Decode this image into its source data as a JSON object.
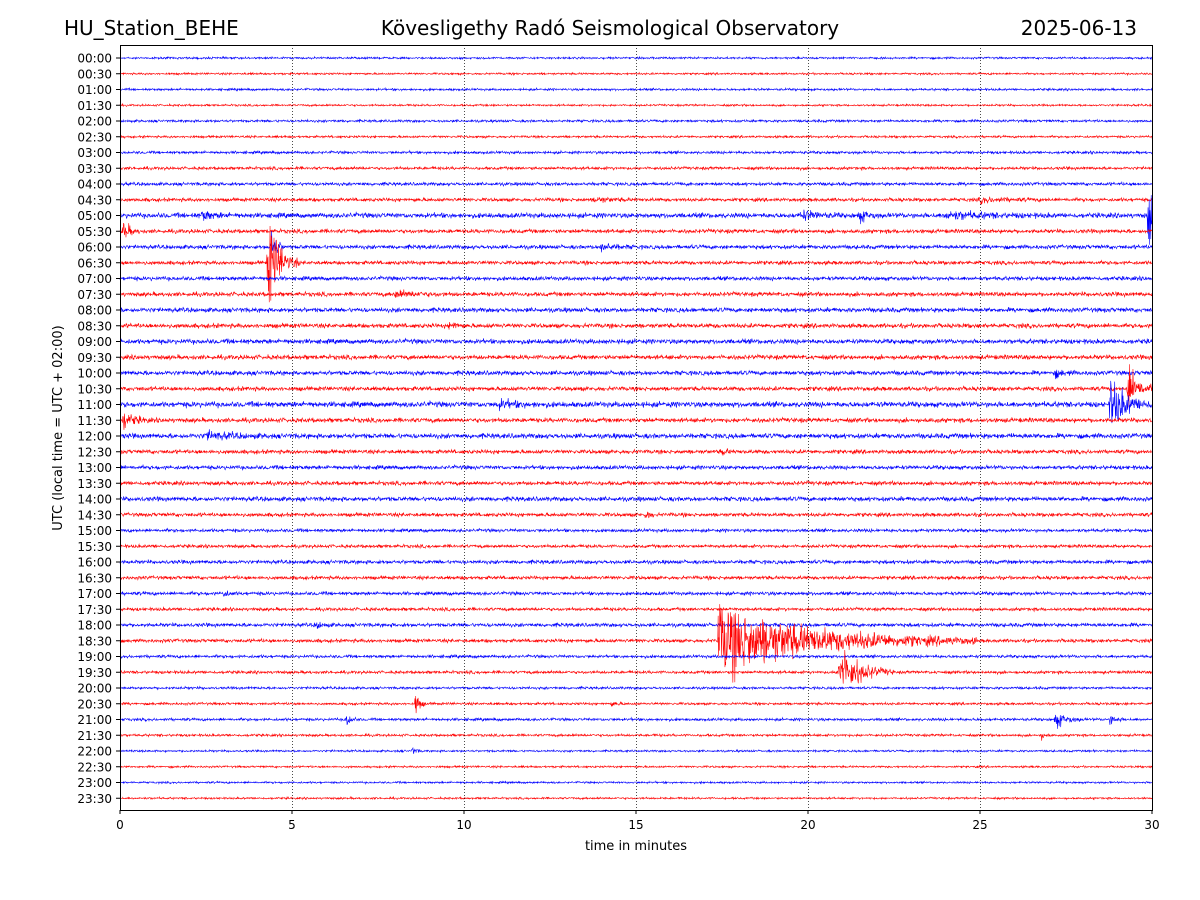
{
  "header": {
    "station": "HU_Station_BEHE",
    "title": "Kövesligethy Radó Seismological Observatory",
    "date": "2025-06-13"
  },
  "chart_data": {
    "type": "line",
    "title": "Kövesligethy Radó Seismological Observatory",
    "xlabel": "time in minutes",
    "ylabel": "UTC (local time = UTC + 02:00)",
    "xlim": [
      0,
      30
    ],
    "xticks": [
      "0",
      "5",
      "10",
      "15",
      "20",
      "25",
      "30"
    ],
    "grid": "vertical dotted at each 5 minutes",
    "row_colors": [
      "#0000ff",
      "#ff0000"
    ],
    "rows": [
      "00:00",
      "00:30",
      "01:00",
      "01:30",
      "02:00",
      "02:30",
      "03:00",
      "03:30",
      "04:00",
      "04:30",
      "05:00",
      "05:30",
      "06:00",
      "06:30",
      "07:00",
      "07:30",
      "08:00",
      "08:30",
      "09:00",
      "09:30",
      "10:00",
      "10:30",
      "11:00",
      "11:30",
      "12:00",
      "12:30",
      "13:00",
      "13:30",
      "14:00",
      "14:30",
      "15:00",
      "15:30",
      "16:00",
      "16:30",
      "17:00",
      "17:30",
      "18:00",
      "18:30",
      "19:00",
      "19:30",
      "20:00",
      "20:30",
      "21:00",
      "21:30",
      "22:00",
      "22:30",
      "23:00",
      "23:30"
    ],
    "noise_levels": [
      0.8,
      0.8,
      0.9,
      0.8,
      1.0,
      0.9,
      1.1,
      1.2,
      1.3,
      1.4,
      2.0,
      1.6,
      1.6,
      1.5,
      1.6,
      1.7,
      1.8,
      1.8,
      1.9,
      1.8,
      1.8,
      1.7,
      2.2,
      1.8,
      2.0,
      1.6,
      1.6,
      1.6,
      1.8,
      1.5,
      1.3,
      1.3,
      1.5,
      1.4,
      1.4,
      1.3,
      1.5,
      1.4,
      1.2,
      1.2,
      1.0,
      1.0,
      1.1,
      1.0,
      0.8,
      0.8,
      0.8,
      0.8
    ],
    "events": [
      {
        "row": "04:30",
        "minute": 13.8,
        "amplitude": 2,
        "duration": 1.2
      },
      {
        "row": "04:30",
        "minute": 25.0,
        "amplitude": 2,
        "duration": 2.0
      },
      {
        "row": "05:00",
        "minute": 2.4,
        "amplitude": 4,
        "duration": 0.8
      },
      {
        "row": "05:00",
        "minute": 19.8,
        "amplitude": 4,
        "duration": 1.2
      },
      {
        "row": "05:00",
        "minute": 21.5,
        "amplitude": 5,
        "duration": 0.6
      },
      {
        "row": "05:00",
        "minute": 24.0,
        "amplitude": 3,
        "duration": 3.0
      },
      {
        "row": "05:00",
        "minute": 29.9,
        "amplitude": 30,
        "duration": 0.5
      },
      {
        "row": "05:30",
        "minute": 0.1,
        "amplitude": 8,
        "duration": 0.5
      },
      {
        "row": "06:00",
        "minute": 4.4,
        "amplitude": 16,
        "duration": 0.4
      },
      {
        "row": "06:00",
        "minute": 14.0,
        "amplitude": 3,
        "duration": 1.0
      },
      {
        "row": "06:30",
        "minute": 4.3,
        "amplitude": 40,
        "duration": 0.9
      },
      {
        "row": "07:30",
        "minute": 8.0,
        "amplitude": 3,
        "duration": 1.5
      },
      {
        "row": "08:30",
        "minute": 9.6,
        "amplitude": 3,
        "duration": 0.6
      },
      {
        "row": "10:00",
        "minute": 27.2,
        "amplitude": 3,
        "duration": 0.6
      },
      {
        "row": "10:30",
        "minute": 29.3,
        "amplitude": 20,
        "duration": 0.8
      },
      {
        "row": "11:00",
        "minute": 28.8,
        "amplitude": 22,
        "duration": 1.2
      },
      {
        "row": "11:00",
        "minute": 11.0,
        "amplitude": 3,
        "duration": 1.5
      },
      {
        "row": "11:30",
        "minute": 0.1,
        "amplitude": 7,
        "duration": 0.8
      },
      {
        "row": "12:00",
        "minute": 2.5,
        "amplitude": 3,
        "duration": 2.0
      },
      {
        "row": "12:30",
        "minute": 17.5,
        "amplitude": 3,
        "duration": 0.4
      },
      {
        "row": "14:30",
        "minute": 15.3,
        "amplitude": 4,
        "duration": 0.3
      },
      {
        "row": "17:00",
        "minute": 3.0,
        "amplitude": 3,
        "duration": 0.4
      },
      {
        "row": "18:00",
        "minute": 5.7,
        "amplitude": 3,
        "duration": 0.5
      },
      {
        "row": "18:30",
        "minute": 17.4,
        "amplitude": 30,
        "duration": 7.5
      },
      {
        "row": "19:30",
        "minute": 20.9,
        "amplitude": 22,
        "duration": 1.6
      },
      {
        "row": "20:30",
        "minute": 8.6,
        "amplitude": 10,
        "duration": 0.3
      },
      {
        "row": "20:30",
        "minute": 14.3,
        "amplitude": 2,
        "duration": 0.4
      },
      {
        "row": "21:00",
        "minute": 6.6,
        "amplitude": 6,
        "duration": 0.3
      },
      {
        "row": "21:00",
        "minute": 27.2,
        "amplitude": 7,
        "duration": 0.8
      },
      {
        "row": "21:00",
        "minute": 28.8,
        "amplitude": 5,
        "duration": 0.4
      },
      {
        "row": "21:30",
        "minute": 26.8,
        "amplitude": 3,
        "duration": 0.3
      },
      {
        "row": "22:00",
        "minute": 8.5,
        "amplitude": 3,
        "duration": 0.3
      }
    ]
  }
}
